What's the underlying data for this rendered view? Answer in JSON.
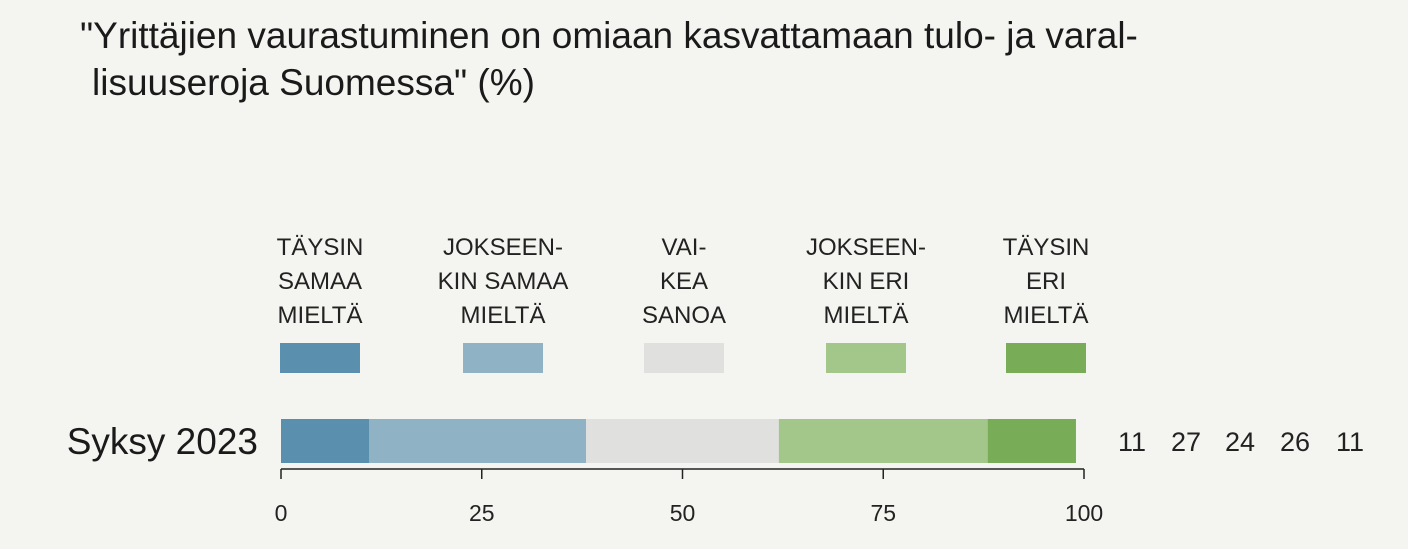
{
  "chart_data": {
    "type": "bar",
    "orientation": "horizontal-stacked",
    "title_lines": [
      "\"Yrittäjien vaurastuminen on omiaan kasvattamaan tulo- ja varal-",
      "lisuuseroja Suomessa\" (%)"
    ],
    "categories": [
      "Syksy 2023"
    ],
    "series": [
      {
        "name_lines": [
          "TÄYSIN",
          "SAMAA",
          "MIELTÄ"
        ],
        "values": [
          11
        ],
        "color": "#5a8fad"
      },
      {
        "name_lines": [
          "JOKSEEN-",
          "KIN SAMAA",
          "MIELTÄ"
        ],
        "values": [
          27
        ],
        "color": "#8fb2c4"
      },
      {
        "name_lines": [
          "VAI-",
          "KEA",
          "SANOA"
        ],
        "values": [
          24
        ],
        "color": "#e0e0df"
      },
      {
        "name_lines": [
          "JOKSEEN-",
          "KIN ERI",
          "MIELTÄ"
        ],
        "values": [
          26
        ],
        "color": "#a3c68a"
      },
      {
        "name_lines": [
          "TÄYSIN",
          "ERI",
          "MIELTÄ"
        ],
        "values": [
          11
        ],
        "color": "#79ac57"
      }
    ],
    "value_labels": [
      "11",
      "27",
      "24",
      "26",
      "11"
    ],
    "xlim": [
      0,
      100
    ],
    "xticks": [
      0,
      25,
      50,
      75,
      100
    ],
    "grid": false,
    "legend_position": "top"
  }
}
